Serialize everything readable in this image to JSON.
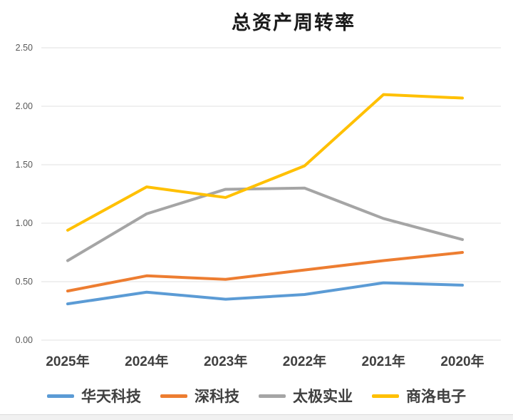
{
  "chart_data": {
    "type": "line",
    "title": "总资产周转率",
    "categories": [
      "2025年",
      "2024年",
      "2023年",
      "2022年",
      "2021年",
      "2020年"
    ],
    "series": [
      {
        "name": "华天科技",
        "color": "#5B9BD5",
        "values": [
          0.31,
          0.41,
          0.35,
          0.39,
          0.49,
          0.47
        ]
      },
      {
        "name": "深科技",
        "color": "#ED7D31",
        "values": [
          0.42,
          0.55,
          0.52,
          0.6,
          0.68,
          0.75
        ]
      },
      {
        "name": "太极实业",
        "color": "#A5A5A5",
        "values": [
          0.68,
          1.08,
          1.29,
          1.3,
          1.04,
          0.86
        ]
      },
      {
        "name": "商洛电子",
        "color": "#FFC000",
        "values": [
          0.94,
          1.31,
          1.22,
          1.49,
          2.1,
          2.07
        ]
      }
    ],
    "y_ticks": [
      "0.00",
      "0.50",
      "1.00",
      "1.50",
      "2.00",
      "2.50"
    ],
    "ylim": [
      0,
      2.5
    ],
    "y_step": 0.5,
    "xlabel": "",
    "ylabel": "",
    "grid": true,
    "legend_position": "bottom",
    "gridline_color": "#e1e1e1",
    "background_color": "#ffffff"
  }
}
